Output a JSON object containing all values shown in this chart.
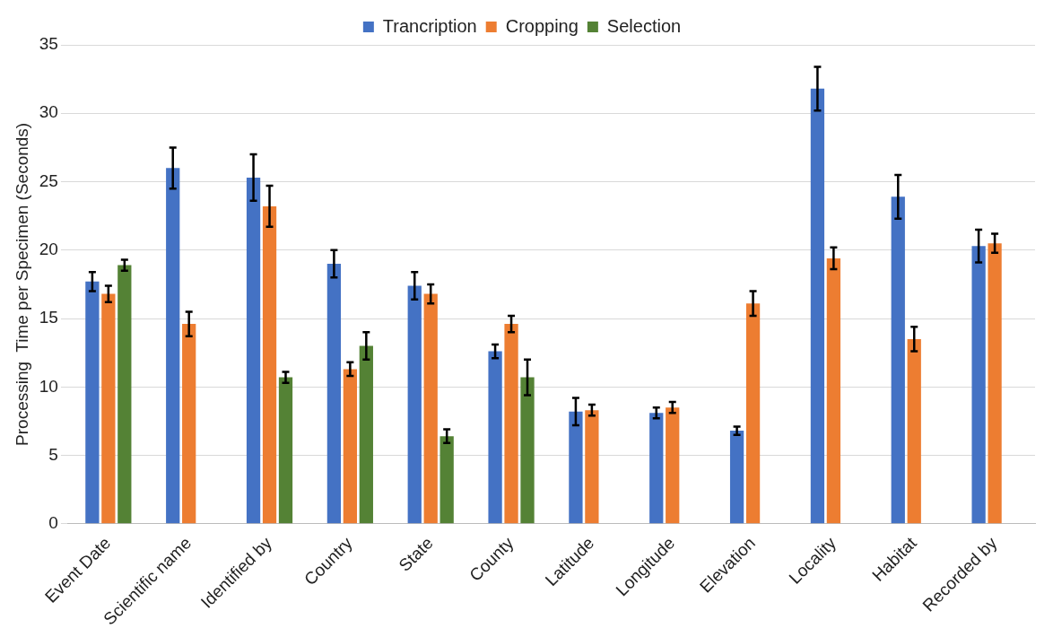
{
  "chart_data": {
    "type": "bar",
    "ylabel": "Processing  Time per Specimen (Seconds)",
    "categories": [
      "Event Date",
      "Scientific name",
      "Identified by",
      "Country",
      "State",
      "County",
      "Latitude",
      "Longitude",
      "Elevation",
      "Locality",
      "Habitat",
      "Recorded by"
    ],
    "series": [
      {
        "name": "Trancription",
        "color": "#4472c4",
        "values": [
          17.7,
          26.0,
          25.3,
          19.0,
          17.4,
          12.6,
          8.2,
          8.1,
          6.8,
          31.8,
          23.9,
          20.3
        ],
        "errors": [
          0.7,
          1.5,
          1.7,
          1.0,
          1.0,
          0.5,
          1.0,
          0.4,
          0.3,
          1.6,
          1.6,
          1.2
        ]
      },
      {
        "name": "Cropping",
        "color": "#ed7d31",
        "values": [
          16.8,
          14.6,
          23.2,
          11.3,
          16.8,
          14.6,
          8.3,
          8.5,
          16.1,
          19.4,
          13.5,
          20.5
        ],
        "errors": [
          0.6,
          0.9,
          1.5,
          0.5,
          0.7,
          0.6,
          0.4,
          0.4,
          0.9,
          0.8,
          0.9,
          0.7
        ]
      },
      {
        "name": "Selection",
        "color": "#548235",
        "values": [
          18.9,
          null,
          10.7,
          13.0,
          6.4,
          10.7,
          null,
          null,
          null,
          null,
          null,
          null
        ],
        "errors": [
          0.4,
          null,
          0.4,
          1.0,
          0.5,
          1.3,
          null,
          null,
          null,
          null,
          null,
          null
        ]
      }
    ],
    "ylim": [
      0,
      35
    ],
    "yticks": [
      0,
      5,
      10,
      15,
      20,
      25,
      30,
      35
    ],
    "grid": "y",
    "legend": "top"
  }
}
